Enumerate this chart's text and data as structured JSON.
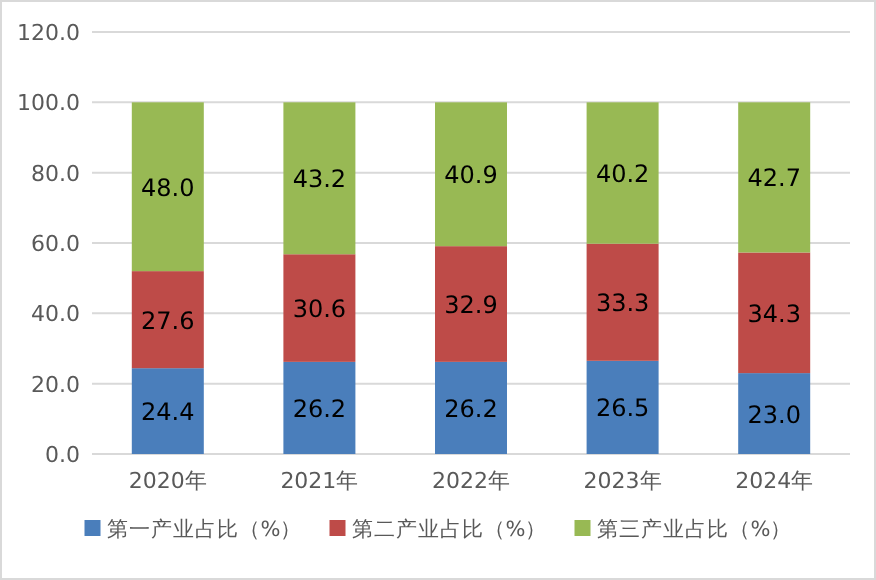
{
  "chart_data": {
    "type": "bar",
    "stacked": true,
    "categories": [
      "2020年",
      "2021年",
      "2022年",
      "2023年",
      "2024年"
    ],
    "series": [
      {
        "name": "第一产业占比（%）",
        "color": "#4a7ebb",
        "values": [
          24.4,
          26.2,
          26.2,
          26.5,
          23.0
        ],
        "value_labels": [
          "24.4",
          "26.2",
          "26.2",
          "26.5",
          "23.0"
        ]
      },
      {
        "name": "第二产业占比（%）",
        "color": "#be4b48",
        "values": [
          27.6,
          30.6,
          32.9,
          33.3,
          34.3
        ],
        "value_labels": [
          "27.6",
          "30.6",
          "32.9",
          "33.3",
          "34.3"
        ]
      },
      {
        "name": "第三产业占比（%）",
        "color": "#98b954",
        "values": [
          48.0,
          43.2,
          40.9,
          40.2,
          42.7
        ],
        "value_labels": [
          "48.0",
          "43.2",
          "40.9",
          "40.2",
          "42.7"
        ]
      }
    ],
    "ylim": [
      0,
      120
    ],
    "yticks": [
      {
        "value": 0,
        "label": "0.0"
      },
      {
        "value": 20,
        "label": "20.0"
      },
      {
        "value": 40,
        "label": "40.0"
      },
      {
        "value": 60,
        "label": "60.0"
      },
      {
        "value": 80,
        "label": "80.0"
      },
      {
        "value": 100,
        "label": "100.0"
      },
      {
        "value": 120,
        "label": "120.0"
      }
    ],
    "grid": "y",
    "legend": "bottom"
  }
}
